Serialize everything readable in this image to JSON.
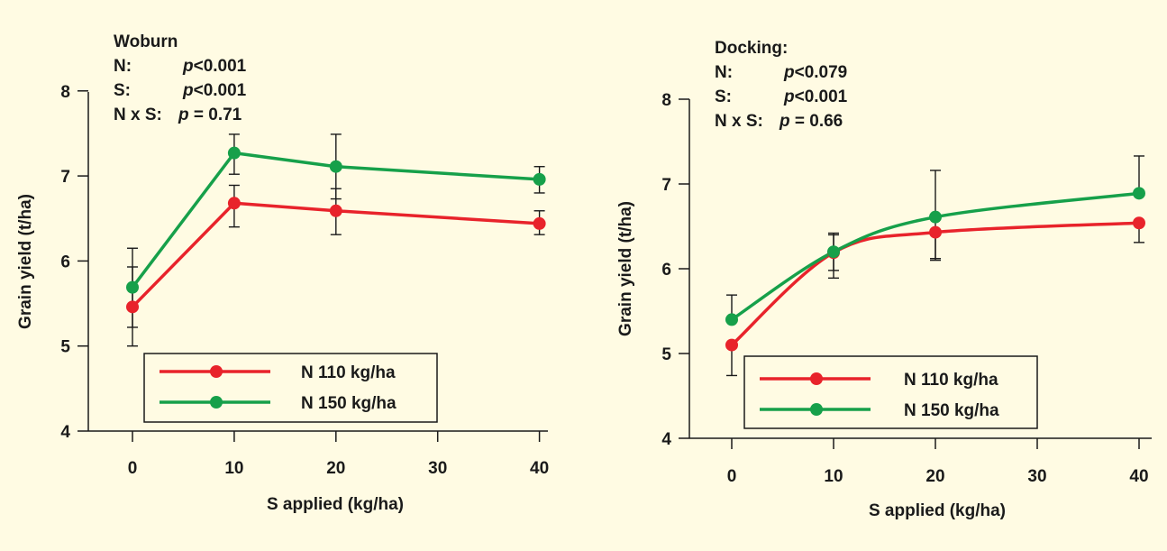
{
  "background": "#fffbe3",
  "series_colors": {
    "N 110 kg/ha": "#e8232b",
    "N 150 kg/ha": "#16a04a"
  },
  "chart_data": [
    {
      "type": "line",
      "title": "Woburn",
      "stats": [
        {
          "label": "N:",
          "p": "p",
          "value": "<0.001"
        },
        {
          "label": "S:",
          "p": "p",
          "value": "<0.001"
        },
        {
          "label": "N x S:",
          "p": "p",
          "value": " = 0.71"
        }
      ],
      "xlabel": "S applied (kg/ha)",
      "ylabel": "Grain yield (t/ha)",
      "x_ticks": [
        0,
        10,
        20,
        30,
        40
      ],
      "y_ticks": [
        4,
        5,
        6,
        7,
        8
      ],
      "xlim": [
        -4,
        40
      ],
      "ylim": [
        4,
        8
      ],
      "smooth": false,
      "legend": "bottom",
      "series": [
        {
          "name": "N 110 kg/ha",
          "color": "#e8232b",
          "x": [
            0,
            10,
            20,
            40
          ],
          "y": [
            5.46,
            6.68,
            6.59,
            6.44
          ],
          "err_low": [
            5.46,
            6.4,
            6.31,
            6.31
          ],
          "err_high": [
            5.46,
            6.89,
            6.85,
            6.59
          ]
        },
        {
          "name": "N 150 kg/ha",
          "color": "#16a04a",
          "x": [
            0,
            10,
            20,
            40
          ],
          "y": [
            5.69,
            7.27,
            7.11,
            6.96
          ],
          "err_low": [
            5.0,
            7.02,
            6.73,
            6.8
          ],
          "err_high": [
            6.15,
            7.49,
            7.49,
            7.11
          ]
        }
      ],
      "extra_errorbars": [
        {
          "x": 0,
          "low": 5.22,
          "high": 5.93
        }
      ]
    },
    {
      "type": "line",
      "title": "Docking:",
      "stats": [
        {
          "label": "N:",
          "p": "p",
          "value": "<0.079"
        },
        {
          "label": "S:",
          "p": "p",
          "value": "<0.001"
        },
        {
          "label": "N x S:",
          "p": "p",
          "value": " = 0.66"
        }
      ],
      "xlabel": "S applied (kg/ha)",
      "ylabel": "Grain yield (t/ha)",
      "x_ticks": [
        0,
        10,
        20,
        30,
        40
      ],
      "y_ticks": [
        4,
        5,
        6,
        7,
        8
      ],
      "xlim": [
        -4,
        40
      ],
      "ylim": [
        4,
        8
      ],
      "smooth": true,
      "legend": "bottom",
      "series": [
        {
          "name": "N 110 kg/ha",
          "color": "#e8232b",
          "x": [
            0,
            10,
            20,
            40
          ],
          "y": [
            5.1,
            6.19,
            6.43,
            6.54
          ],
          "err_low": [
            4.74,
            5.98,
            6.12,
            6.31
          ],
          "err_high": [
            5.1,
            6.4,
            6.43,
            6.54
          ]
        },
        {
          "name": "N 150 kg/ha",
          "color": "#16a04a",
          "x": [
            0,
            10,
            20,
            40
          ],
          "y": [
            5.4,
            6.2,
            6.61,
            6.89
          ],
          "err_low": [
            5.4,
            5.89,
            6.1,
            6.89
          ],
          "err_high": [
            5.69,
            6.42,
            7.16,
            7.33
          ]
        }
      ],
      "extra_errorbars": []
    }
  ]
}
